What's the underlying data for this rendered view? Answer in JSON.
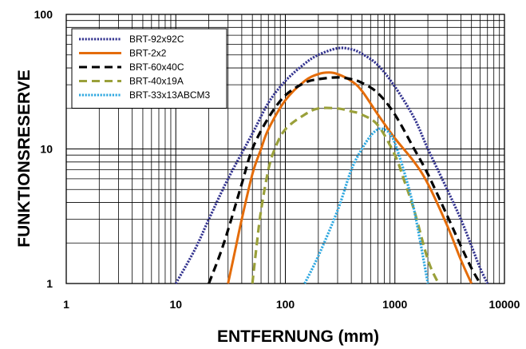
{
  "chart_data": {
    "type": "line",
    "xlabel": "ENTFERNUNG (mm)",
    "ylabel": "FUNKTIONSRESERVE",
    "xscale": "log",
    "yscale": "log",
    "xlim": [
      1,
      10000
    ],
    "ylim": [
      1,
      100
    ],
    "x_tick_labels": [
      "1",
      "10",
      "100",
      "1000",
      "10000"
    ],
    "y_tick_labels": [
      "1",
      "10",
      "100"
    ],
    "grid": true,
    "legend_position": "top-left",
    "series": [
      {
        "name": "BRT-92x92C",
        "color": "#33338f",
        "dash": "dotted",
        "x": [
          10,
          15,
          20,
          30,
          50,
          70,
          100,
          150,
          200,
          300,
          400,
          500,
          700,
          1000,
          1500,
          2000,
          3000,
          4000,
          5000,
          6000,
          7000
        ],
        "y": [
          1,
          1.8,
          3,
          6,
          13,
          22,
          32,
          43,
          50,
          56,
          55,
          51,
          42,
          29,
          17,
          10,
          5,
          3,
          1.9,
          1.3,
          1
        ]
      },
      {
        "name": "BRT-2x2",
        "color": "#e46c0a",
        "dash": "solid",
        "x": [
          30,
          35,
          40,
          50,
          60,
          70,
          100,
          150,
          200,
          250,
          300,
          400,
          500,
          700,
          1000,
          1500,
          2000,
          3000,
          4000,
          5000
        ],
        "y": [
          1,
          1.8,
          3,
          6.5,
          10,
          14,
          23,
          32,
          36,
          37,
          36,
          32,
          27,
          18,
          12,
          8,
          5.5,
          2.7,
          1.5,
          1
        ]
      },
      {
        "name": "BRT-60x40C",
        "color": "#000000",
        "dash": "dashed",
        "x": [
          20,
          25,
          30,
          40,
          50,
          70,
          100,
          150,
          200,
          300,
          400,
          500,
          700,
          1000,
          1500,
          2000,
          3000,
          4000,
          5000,
          6000
        ],
        "y": [
          1,
          1.6,
          2.5,
          5.5,
          10,
          17,
          25,
          31,
          33,
          34,
          33,
          31,
          26,
          18,
          10,
          6.5,
          3.2,
          1.9,
          1.3,
          1
        ]
      },
      {
        "name": "BRT-40x19A",
        "color": "#9aa03a",
        "dash": "dashed",
        "x": [
          50,
          55,
          60,
          70,
          80,
          100,
          150,
          200,
          300,
          400,
          500,
          700,
          1000,
          1200,
          1500,
          2000,
          2500
        ],
        "y": [
          1,
          2,
          3.5,
          7,
          10,
          14,
          18,
          20,
          20,
          19,
          18,
          15,
          9,
          6,
          3.5,
          1.5,
          1
        ]
      },
      {
        "name": "BRT-33x13ABCM3",
        "color": "#2fa8e0",
        "dash": "dotted",
        "x": [
          150,
          200,
          300,
          400,
          500,
          600,
          700,
          800,
          900,
          1000,
          1200,
          1500,
          2000
        ],
        "y": [
          1,
          1.6,
          3.5,
          7,
          10,
          12.5,
          14,
          14,
          13,
          11,
          7,
          3.5,
          1
        ]
      }
    ]
  }
}
